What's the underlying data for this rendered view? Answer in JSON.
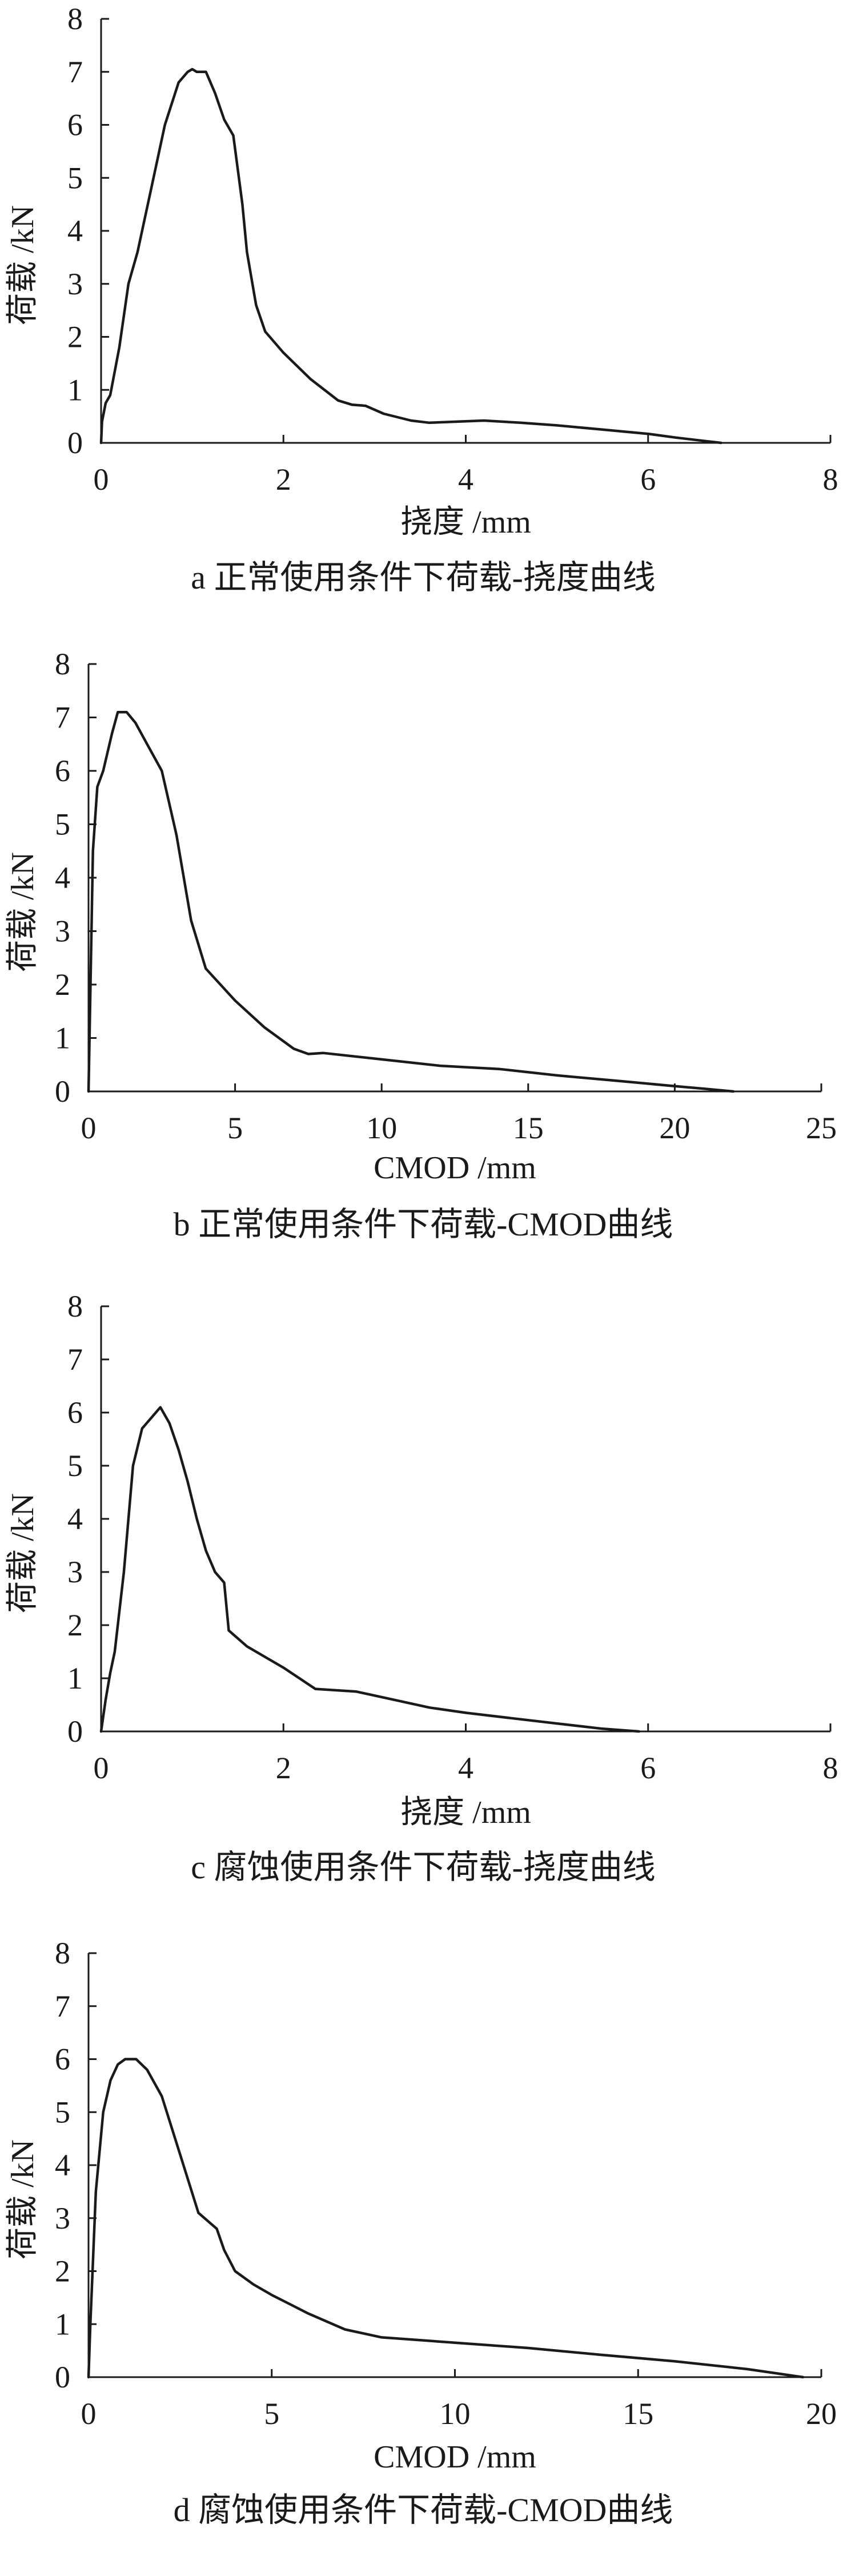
{
  "colors": {
    "line": "#1a1a1a",
    "axis": "#1a1a1a",
    "background": "#ffffff"
  },
  "chart_data": [
    {
      "type": "line",
      "caption": "a  正常使用条件下荷载-挠度曲线",
      "xlabel": "挠度 /mm",
      "ylabel": "荷载 /kN",
      "xlim": [
        0,
        8
      ],
      "ylim": [
        0,
        8
      ],
      "xticks": [
        0,
        2,
        4,
        6,
        8
      ],
      "yticks": [
        0,
        1,
        2,
        3,
        4,
        5,
        6,
        7,
        8
      ],
      "series": [
        {
          "x": [
            0.0,
            0.01,
            0.05,
            0.1,
            0.2,
            0.3,
            0.4,
            0.55,
            0.7,
            0.85,
            0.95,
            1.0,
            1.05,
            1.15,
            1.25,
            1.35,
            1.45,
            1.55,
            1.6,
            1.7,
            1.8,
            2.0,
            2.3,
            2.6,
            2.75,
            2.9,
            3.1,
            3.4,
            3.6,
            3.9,
            4.2,
            4.6,
            5.0,
            5.5,
            6.0,
            6.3,
            6.6,
            6.8
          ],
          "y": [
            0.0,
            0.4,
            0.75,
            0.9,
            1.8,
            3.0,
            3.6,
            4.8,
            6.0,
            6.8,
            7.0,
            7.05,
            7.0,
            7.0,
            6.6,
            6.1,
            5.8,
            4.5,
            3.6,
            2.6,
            2.1,
            1.7,
            1.2,
            0.8,
            0.72,
            0.7,
            0.55,
            0.42,
            0.38,
            0.4,
            0.42,
            0.38,
            0.33,
            0.25,
            0.17,
            0.1,
            0.04,
            0.0
          ]
        }
      ]
    },
    {
      "type": "line",
      "caption": "b  正常使用条件下荷载-CMOD曲线",
      "xlabel": "CMOD /mm",
      "ylabel": "荷载 /kN",
      "xlim": [
        0,
        25
      ],
      "ylim": [
        0,
        8
      ],
      "xticks": [
        0,
        5,
        10,
        15,
        20,
        25
      ],
      "yticks": [
        0,
        1,
        2,
        3,
        4,
        5,
        6,
        7,
        8
      ],
      "series": [
        {
          "x": [
            0.0,
            0.05,
            0.15,
            0.3,
            0.5,
            0.8,
            1.0,
            1.3,
            1.6,
            2.0,
            2.5,
            3.0,
            3.5,
            4.0,
            5.0,
            6.0,
            7.0,
            7.5,
            8.0,
            10.0,
            12.0,
            14.0,
            16.0,
            18.0,
            20.0,
            21.0,
            22.0
          ],
          "y": [
            0.0,
            1.5,
            4.5,
            5.7,
            6.0,
            6.7,
            7.1,
            7.1,
            6.9,
            6.5,
            6.0,
            4.8,
            3.2,
            2.3,
            1.7,
            1.2,
            0.8,
            0.7,
            0.72,
            0.6,
            0.48,
            0.42,
            0.3,
            0.2,
            0.1,
            0.05,
            0.0
          ]
        }
      ]
    },
    {
      "type": "line",
      "caption": "c  腐蚀使用条件下荷载-挠度曲线",
      "xlabel": "挠度 /mm",
      "ylabel": "荷载 /kN",
      "xlim": [
        0,
        8
      ],
      "ylim": [
        0,
        8
      ],
      "xticks": [
        0,
        2,
        4,
        6,
        8
      ],
      "yticks": [
        0,
        1,
        2,
        3,
        4,
        5,
        6,
        7,
        8
      ],
      "series": [
        {
          "x": [
            0.0,
            0.05,
            0.1,
            0.15,
            0.25,
            0.35,
            0.45,
            0.55,
            0.65,
            0.75,
            0.85,
            0.95,
            1.05,
            1.15,
            1.25,
            1.35,
            1.4,
            1.6,
            2.0,
            2.35,
            2.8,
            3.2,
            3.6,
            4.0,
            4.5,
            5.0,
            5.5,
            5.9
          ],
          "y": [
            0.0,
            0.6,
            1.1,
            1.5,
            3.0,
            5.0,
            5.7,
            5.9,
            6.1,
            5.8,
            5.3,
            4.7,
            4.0,
            3.4,
            3.0,
            2.8,
            1.9,
            1.6,
            1.2,
            0.8,
            0.75,
            0.6,
            0.45,
            0.35,
            0.25,
            0.15,
            0.05,
            0.0
          ]
        }
      ]
    },
    {
      "type": "line",
      "caption": "d  腐蚀使用条件下荷载-CMOD曲线",
      "xlabel": "CMOD /mm",
      "ylabel": "荷载 /kN",
      "xlim": [
        0,
        20
      ],
      "ylim": [
        0,
        8
      ],
      "xticks": [
        0,
        5,
        10,
        15,
        20
      ],
      "yticks": [
        0,
        1,
        2,
        3,
        4,
        5,
        6,
        7,
        8
      ],
      "series": [
        {
          "x": [
            0.0,
            0.05,
            0.2,
            0.4,
            0.6,
            0.8,
            1.0,
            1.3,
            1.6,
            2.0,
            2.5,
            3.0,
            3.5,
            3.7,
            4.0,
            4.5,
            5.0,
            6.0,
            7.0,
            8.0,
            10.0,
            12.0,
            14.0,
            16.0,
            18.0,
            19.0,
            19.5
          ],
          "y": [
            0.0,
            1.0,
            3.5,
            5.0,
            5.6,
            5.9,
            6.0,
            6.0,
            5.8,
            5.3,
            4.2,
            3.1,
            2.8,
            2.4,
            2.0,
            1.75,
            1.55,
            1.2,
            0.9,
            0.75,
            0.65,
            0.55,
            0.42,
            0.3,
            0.15,
            0.05,
            0.0
          ]
        }
      ]
    }
  ]
}
